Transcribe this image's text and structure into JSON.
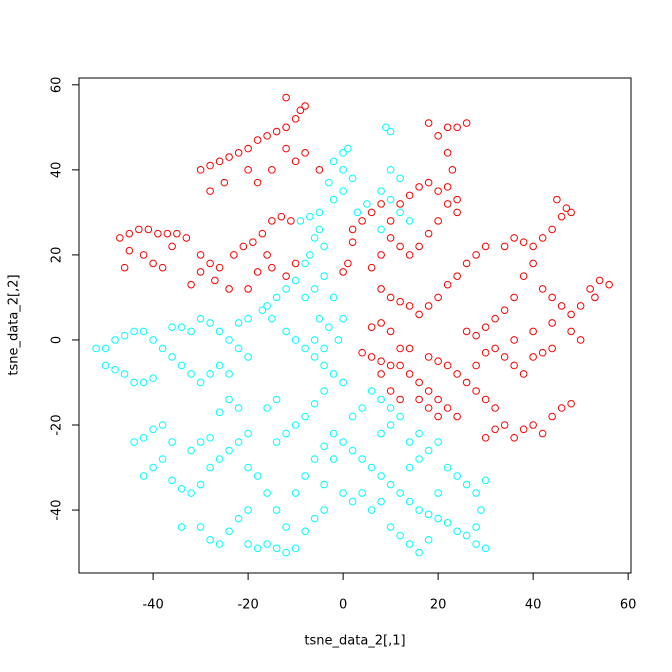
{
  "chart_data": {
    "type": "scatter",
    "xlabel": "tsne_data_2[,1]",
    "ylabel": "tsne_data_2[,2]",
    "xlim": [
      -55.6,
      60.6
    ],
    "ylim": [
      -54.8,
      61.6
    ],
    "xticks": [
      -40,
      -20,
      0,
      20,
      40,
      60
    ],
    "yticks": [
      -40,
      -20,
      0,
      20,
      40,
      60
    ],
    "marker": "open-circle",
    "series": [
      {
        "color": "#ff0000",
        "x": [
          -30,
          -28,
          -26,
          -24,
          -22,
          -20,
          -18,
          -16,
          -14,
          -12,
          -10,
          -9,
          -12,
          -8,
          -28,
          -25,
          -18,
          -15,
          -10,
          -8,
          -5,
          -12,
          -20,
          -47,
          -45,
          -43,
          -41,
          -39,
          -37,
          -35,
          -33,
          -45,
          -42,
          -40,
          -38,
          -46,
          -36,
          -30,
          -28,
          -26,
          -30,
          -32,
          -27,
          -23,
          -21,
          -19,
          -17,
          -15,
          -13,
          -11,
          -18,
          -15,
          -24,
          -20,
          -12,
          -10,
          -16,
          1,
          0,
          2,
          4,
          2,
          6,
          8,
          10,
          12,
          14,
          16,
          18,
          20,
          22,
          24,
          20,
          18,
          16,
          14,
          12,
          10,
          8,
          6,
          8,
          10,
          12,
          14,
          16,
          18,
          20,
          22,
          24,
          26,
          28,
          30,
          20,
          22,
          24,
          26,
          18,
          22,
          23,
          22,
          24,
          34,
          36,
          38,
          40,
          42,
          44,
          46,
          47,
          45,
          48,
          40,
          38,
          42,
          44,
          46,
          48,
          50,
          52,
          54,
          56,
          53,
          36,
          34,
          32,
          30,
          28,
          26,
          4,
          6,
          8,
          10,
          12,
          14,
          16,
          18,
          20,
          22,
          24,
          18,
          20,
          22,
          24,
          26,
          28,
          30,
          32,
          34,
          36,
          30,
          32,
          38,
          40,
          42,
          44,
          46,
          48,
          40,
          42,
          44,
          38,
          36,
          34,
          32,
          30,
          28,
          36,
          40,
          44,
          48,
          50,
          6,
          8,
          10,
          12,
          14,
          16,
          18,
          20,
          8,
          10,
          12
        ],
        "values": [
          40,
          41,
          42,
          43,
          44,
          45,
          47,
          48,
          49,
          50,
          52,
          54,
          57,
          55,
          35,
          37,
          37,
          40,
          42,
          44,
          40,
          45,
          40,
          24,
          25,
          26,
          26,
          25,
          25,
          25,
          24,
          21,
          20,
          18,
          17,
          17,
          22,
          20,
          18,
          17,
          16,
          13,
          14,
          20,
          22,
          23,
          25,
          28,
          29,
          28,
          16,
          17,
          12,
          12,
          15,
          18,
          20,
          18,
          16,
          26,
          28,
          23,
          30,
          32,
          28,
          32,
          34,
          36,
          37,
          35,
          32,
          30,
          28,
          25,
          22,
          20,
          22,
          24,
          20,
          17,
          12,
          10,
          9,
          8,
          6,
          8,
          10,
          13,
          15,
          18,
          20,
          22,
          48,
          50,
          50,
          51,
          51,
          44,
          40,
          36,
          33,
          22,
          24,
          23,
          22,
          24,
          26,
          29,
          31,
          33,
          30,
          18,
          15,
          12,
          10,
          8,
          6,
          8,
          12,
          14,
          13,
          10,
          10,
          7,
          5,
          3,
          1,
          2,
          -3,
          -4,
          -5,
          -6,
          -6,
          -8,
          -10,
          -12,
          -14,
          -16,
          -18,
          -4,
          -5,
          -6,
          -8,
          -10,
          -12,
          -14,
          -16,
          -20,
          -23,
          -23,
          -21,
          -21,
          -20,
          -22,
          -18,
          -16,
          -15,
          -4,
          -3,
          -2,
          -8,
          -6,
          -4,
          -2,
          -3,
          -6,
          0,
          2,
          4,
          2,
          0,
          3,
          4,
          2,
          -2,
          -2,
          -14,
          -16,
          -18,
          -8,
          -12,
          -14
        ]
      },
      {
        "color": "#00ffff",
        "x": [
          9,
          10,
          0,
          1,
          -2,
          0,
          2,
          -3,
          0,
          -2,
          -5,
          -7,
          -9,
          -5,
          -6,
          -4,
          -7,
          -8,
          -10,
          -12,
          -14,
          -16,
          -17,
          -15,
          -12,
          -10,
          -8,
          -6,
          -4,
          -2,
          0,
          -4,
          -6,
          -8,
          -10,
          -12,
          -14,
          10,
          12,
          8,
          10,
          12,
          14,
          8,
          5,
          3,
          -5,
          -3,
          -1,
          -4,
          -6,
          -8,
          -6,
          -4,
          0,
          -2,
          -52,
          -50,
          -48,
          -46,
          -44,
          -42,
          -40,
          -38,
          -36,
          -50,
          -48,
          -46,
          -44,
          -42,
          -40,
          -36,
          -34,
          -32,
          -30,
          -28,
          -26,
          -24,
          -22,
          -20,
          -22,
          -20,
          -34,
          -32,
          -30,
          -28,
          -26,
          -24,
          -44,
          -42,
          -40,
          -38,
          -36,
          -38,
          -40,
          -42,
          -36,
          -34,
          -32,
          -30,
          -28,
          -26,
          -24,
          -22,
          -20,
          -32,
          -30,
          -28,
          -34,
          -30,
          -28,
          -26,
          -24,
          -22,
          -20,
          -20,
          -18,
          -16,
          -14,
          -12,
          -10,
          -8,
          -6,
          -4,
          -12,
          -14,
          -16,
          -18,
          -20,
          -10,
          -8,
          -6,
          -4,
          -2,
          -22,
          -24,
          -26,
          -16,
          -14,
          0,
          2,
          4,
          6,
          8,
          10,
          12,
          14,
          16,
          18,
          20,
          22,
          24,
          26,
          28,
          30,
          28,
          29,
          10,
          12,
          14,
          16,
          18,
          6,
          8,
          14,
          16,
          18,
          20,
          22,
          24,
          26,
          28,
          30,
          20,
          8,
          10,
          12,
          14,
          16,
          0,
          2,
          4,
          -2,
          -4,
          8,
          10,
          6,
          4,
          2
        ],
        "values": [
          50,
          49,
          44,
          45,
          42,
          40,
          38,
          37,
          35,
          33,
          30,
          29,
          28,
          26,
          24,
          22,
          20,
          18,
          14,
          12,
          10,
          8,
          7,
          5,
          2,
          0,
          -2,
          -4,
          -6,
          -8,
          -10,
          -12,
          -15,
          -18,
          -20,
          -22,
          -24,
          40,
          38,
          35,
          33,
          30,
          28,
          26,
          32,
          30,
          5,
          3,
          0,
          -2,
          0,
          10,
          12,
          15,
          5,
          10,
          -2,
          -2,
          0,
          1,
          2,
          2,
          0,
          -2,
          -4,
          -6,
          -7,
          -8,
          -10,
          -10,
          -9,
          3,
          3,
          2,
          5,
          4,
          2,
          0,
          -2,
          -4,
          4,
          5,
          -6,
          -8,
          -10,
          -8,
          -6,
          -8,
          -24,
          -23,
          -21,
          -20,
          -24,
          -28,
          -30,
          -32,
          -33,
          -35,
          -36,
          -34,
          -30,
          -28,
          -26,
          -24,
          -22,
          -26,
          -24,
          -23,
          -44,
          -44,
          -47,
          -48,
          -45,
          -42,
          -40,
          -48,
          -49,
          -48,
          -49,
          -50,
          -49,
          -45,
          -42,
          -40,
          -44,
          -40,
          -36,
          -32,
          -30,
          -36,
          -32,
          -28,
          -25,
          -22,
          -16,
          -14,
          -17,
          -16,
          -14,
          -24,
          -26,
          -28,
          -30,
          -32,
          -34,
          -36,
          -38,
          -40,
          -41,
          -42,
          -43,
          -45,
          -46,
          -48,
          -49,
          -44,
          -40,
          -44,
          -46,
          -48,
          -50,
          -47,
          -40,
          -38,
          -30,
          -28,
          -26,
          -24,
          -30,
          -32,
          -34,
          -36,
          -33,
          -36,
          -22,
          -20,
          -18,
          -24,
          -22,
          -36,
          -38,
          -36,
          -28,
          -34,
          -14,
          -16,
          -12,
          -16,
          -18
        ]
      }
    ]
  }
}
